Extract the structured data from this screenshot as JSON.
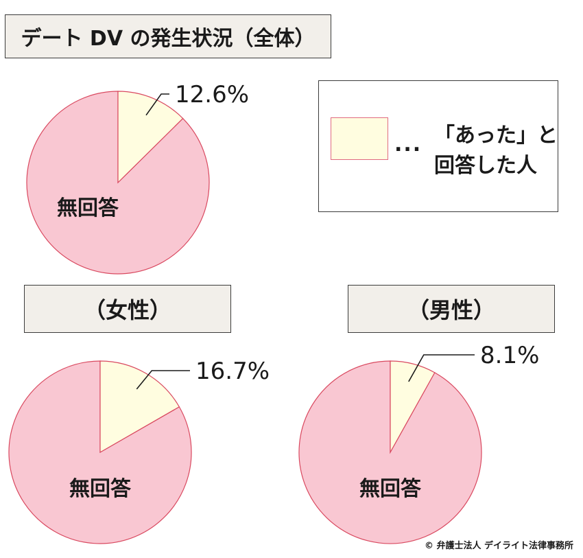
{
  "title": "デート DV の発生状況（全体）",
  "legend": {
    "swatch_color": "#fffde0",
    "dots": "...",
    "line1": "「あった」と",
    "line2": "回答した人"
  },
  "colors": {
    "yes": "#fffde0",
    "no_answer": "#f9c7d2",
    "stroke": "#d9485f",
    "leader": "#1a1a1a"
  },
  "chart_data": [
    {
      "type": "pie",
      "title": "デート DV の発生状況（全体）",
      "slices": [
        {
          "label": "あった",
          "value": 12.6,
          "value_label": "12.6%"
        },
        {
          "label": "無回答",
          "value": 87.4
        }
      ]
    },
    {
      "type": "pie",
      "title": "（女性）",
      "slices": [
        {
          "label": "あった",
          "value": 16.7,
          "value_label": "16.7%"
        },
        {
          "label": "無回答",
          "value": 83.3
        }
      ]
    },
    {
      "type": "pie",
      "title": "（男性）",
      "slices": [
        {
          "label": "あった",
          "value": 8.1,
          "value_label": "8.1%"
        },
        {
          "label": "無回答",
          "value": 91.9
        }
      ]
    }
  ],
  "copyright": "© 弁護士法人 デイライト法律事務所"
}
